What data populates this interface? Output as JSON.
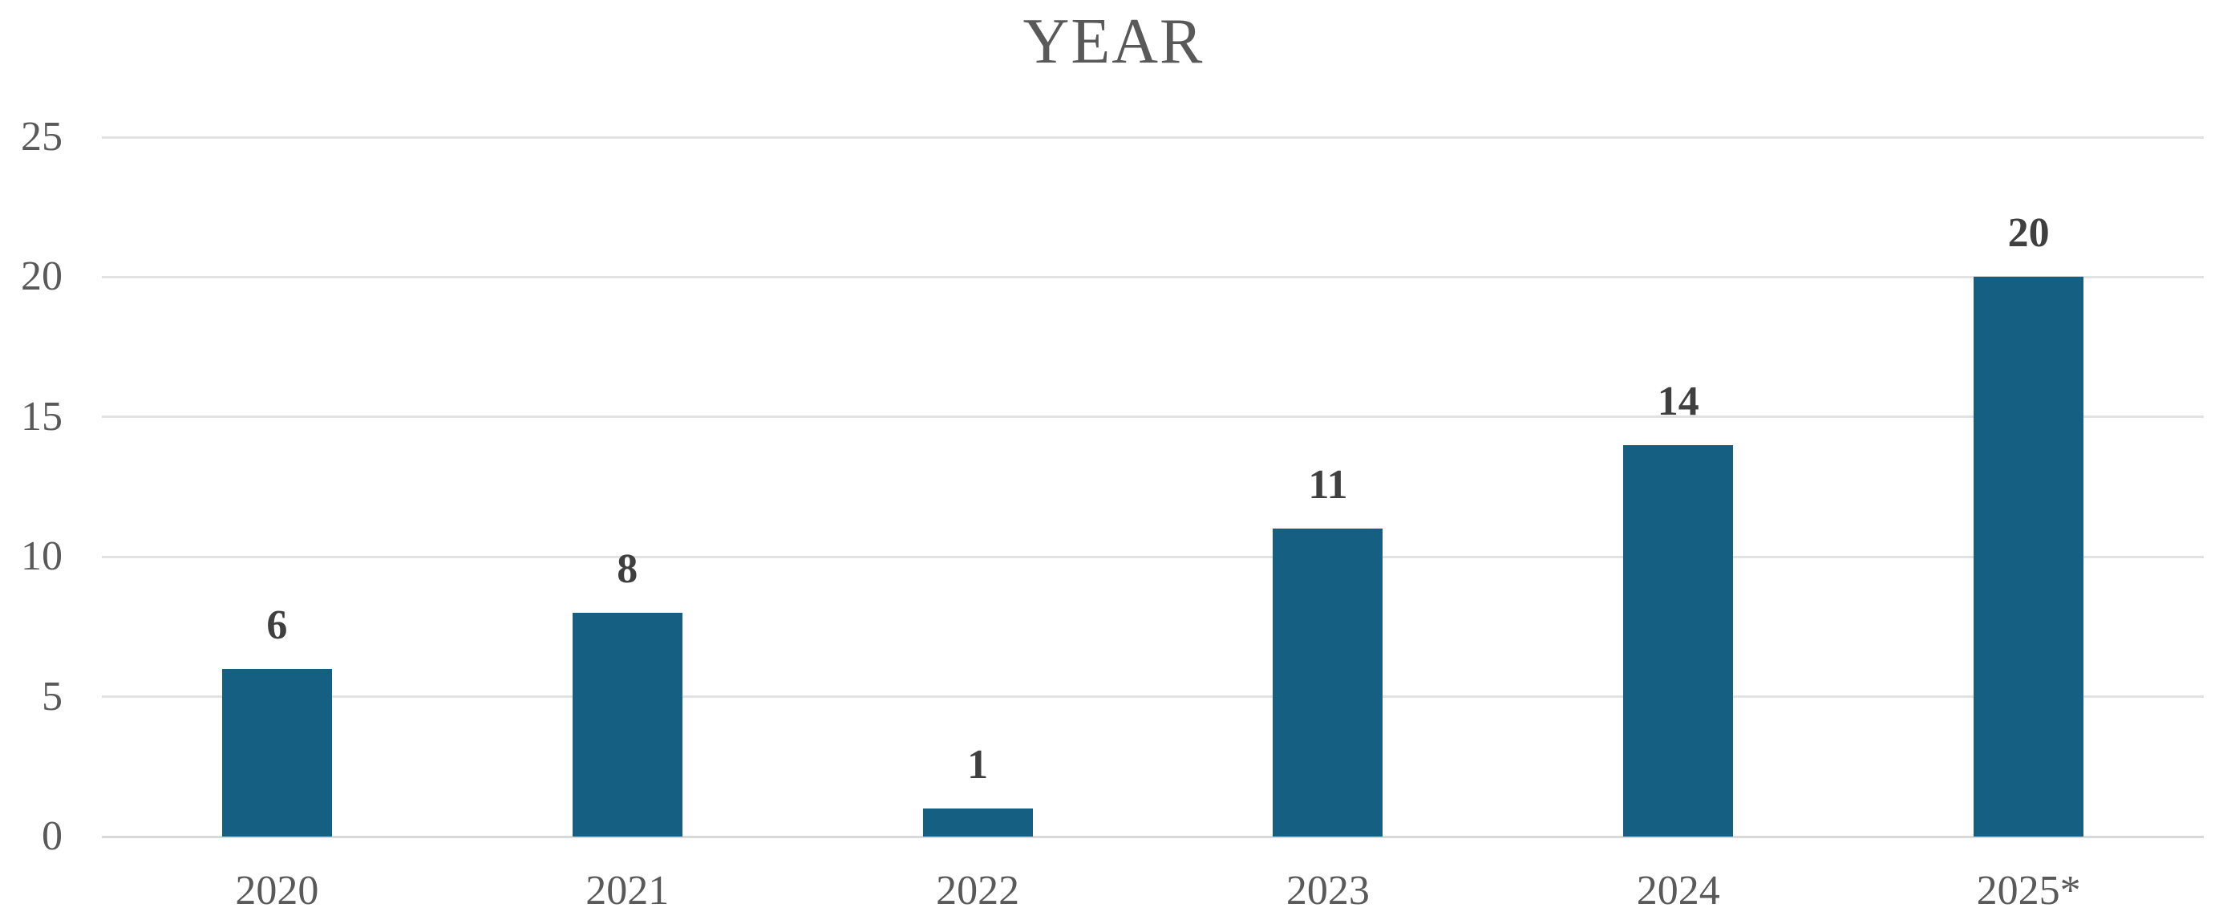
{
  "chart_data": {
    "type": "bar",
    "title": "YEAR",
    "categories": [
      "2020",
      "2021",
      "2022",
      "2023",
      "2024",
      "2025*"
    ],
    "values": [
      6,
      8,
      1,
      11,
      14,
      20
    ],
    "data_labels": [
      "6",
      "8",
      "1",
      "11",
      "14",
      "20"
    ],
    "xlabel": "",
    "ylabel": "",
    "ylim": [
      0,
      25
    ],
    "yticks": [
      0,
      5,
      10,
      15,
      20,
      25
    ],
    "grid": true,
    "legend": false,
    "colors": {
      "bar": "#156082",
      "gridline": "#e2e2e2",
      "axis_line": "#d9d9d9",
      "title_text": "#595959",
      "tick_text": "#595959",
      "data_label_text": "#3f3f3f"
    }
  }
}
